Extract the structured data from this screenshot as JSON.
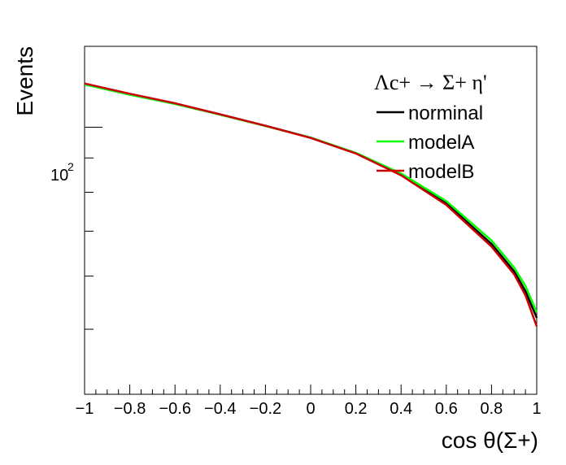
{
  "chart_data": {
    "type": "line",
    "title": "",
    "xlabel": "cos θ(Σ+)",
    "ylabel": "Events",
    "xlim": [
      -1,
      1
    ],
    "ylim": [
      40,
      132
    ],
    "log_y": true,
    "grid": false,
    "legend_position": "top-right",
    "legend_title": "Λc+ → Σ+ η'",
    "x_ticks": [
      -1,
      -0.8,
      -0.6,
      -0.4,
      -0.2,
      0,
      0.2,
      0.4,
      0.6,
      0.8,
      1
    ],
    "x_tick_labels": [
      "−1",
      "−0.8",
      "−0.6",
      "−0.4",
      "−0.2",
      "0",
      "0.2",
      "0.4",
      "0.6",
      "0.8",
      "1"
    ],
    "y_major_tick_label": "10",
    "y_major_tick_exponent": "2",
    "series": [
      {
        "name": "norminal",
        "color": "#000000",
        "x": [
          -1,
          -0.8,
          -0.6,
          -0.4,
          -0.2,
          0,
          0.2,
          0.4,
          0.6,
          0.8,
          0.9,
          0.95,
          1
        ],
        "y": [
          116,
          112,
          108.5,
          104.5,
          100.5,
          96.5,
          91.5,
          85,
          77,
          67,
          61,
          57,
          52
        ]
      },
      {
        "name": "modelA",
        "color": "#00ff00",
        "x": [
          -1,
          -0.8,
          -0.6,
          -0.4,
          -0.2,
          0,
          0.2,
          0.4,
          0.6,
          0.8,
          0.9,
          0.95,
          1
        ],
        "y": [
          115.8,
          111.8,
          108.3,
          104.4,
          100.4,
          96.5,
          91.6,
          85.3,
          77.6,
          67.8,
          61.8,
          58,
          53
        ]
      },
      {
        "name": "modelB",
        "color": "#cc0000",
        "x": [
          -1,
          -0.8,
          -0.6,
          -0.4,
          -0.2,
          0,
          0.2,
          0.4,
          0.6,
          0.8,
          0.9,
          0.95,
          1
        ],
        "y": [
          116.2,
          112.2,
          108.6,
          104.5,
          100.5,
          96.4,
          91.4,
          84.8,
          76.6,
          66.4,
          60.4,
          56.2,
          50.5
        ]
      }
    ]
  }
}
